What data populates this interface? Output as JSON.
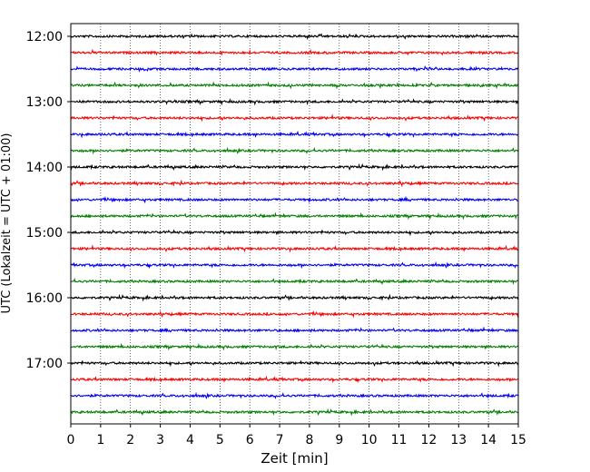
{
  "chart_data": {
    "type": "line",
    "title": "",
    "xlabel": "Zeit  [min]",
    "ylabel": "UTC (Lokalzeit = UTC + 01:00)",
    "xlim": [
      0,
      15
    ],
    "x_ticks": [
      "0",
      "1",
      "2",
      "3",
      "4",
      "5",
      "6",
      "7",
      "8",
      "9",
      "10",
      "11",
      "12",
      "13",
      "14",
      "15"
    ],
    "y_ticks": [
      "12:00",
      "13:00",
      "14:00",
      "15:00",
      "16:00",
      "17:00"
    ],
    "grid": "vertical dotted lines at each minute",
    "line_colors": [
      "#000000",
      "#ff0000",
      "#0000ff",
      "#008000"
    ],
    "trace_start_times": [
      "12:00",
      "12:15",
      "12:30",
      "12:45",
      "13:00",
      "13:15",
      "13:30",
      "13:45",
      "14:00",
      "14:15",
      "14:30",
      "14:45",
      "15:00",
      "15:15",
      "15:30",
      "15:45",
      "16:00",
      "16:15",
      "16:30",
      "16:45",
      "17:00",
      "17:15",
      "17:30",
      "17:45"
    ],
    "trace_duration_min": 15
  }
}
